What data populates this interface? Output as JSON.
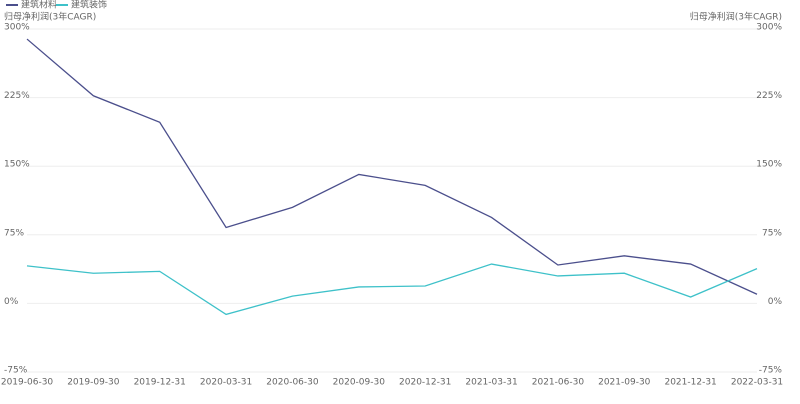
{
  "chart_data": {
    "type": "line",
    "ylabel": "归母净利润(3年CAGR)",
    "y2label": "归母净利润(3年CAGR)",
    "categories": [
      "2019-06-30",
      "2019-09-30",
      "2019-12-31",
      "2020-03-31",
      "2020-06-30",
      "2020-09-30",
      "2020-12-31",
      "2021-03-31",
      "2021-06-30",
      "2021-09-30",
      "2021-12-31",
      "2022-03-31"
    ],
    "series": [
      {
        "name": "建筑材料",
        "color": "#4b4f8c",
        "values": [
          289,
          227,
          198,
          83,
          105,
          141,
          129,
          94,
          42,
          52,
          43,
          10
        ]
      },
      {
        "name": "建筑装饰",
        "color": "#3ec1c9",
        "values": [
          41,
          33,
          35,
          -12,
          8,
          18,
          19,
          43,
          30,
          33,
          7,
          38
        ]
      }
    ],
    "ylim": [
      -75,
      300
    ],
    "yticks": [
      {
        "value": -75,
        "label": "-75%"
      },
      {
        "value": 0,
        "label": "0%"
      },
      {
        "value": 75,
        "label": "75%"
      },
      {
        "value": 150,
        "label": "150%"
      },
      {
        "value": 225,
        "label": "225%"
      },
      {
        "value": 300,
        "label": "300%"
      }
    ],
    "y2lim": [
      -75,
      300
    ],
    "y2ticks": [
      {
        "value": -75,
        "label": "-75%"
      },
      {
        "value": 0,
        "label": "0%"
      },
      {
        "value": 75,
        "label": "75%"
      },
      {
        "value": 150,
        "label": "150%"
      },
      {
        "value": 225,
        "label": "225%"
      },
      {
        "value": 300,
        "label": "300%"
      }
    ],
    "grid": true,
    "legend": "top-left"
  }
}
